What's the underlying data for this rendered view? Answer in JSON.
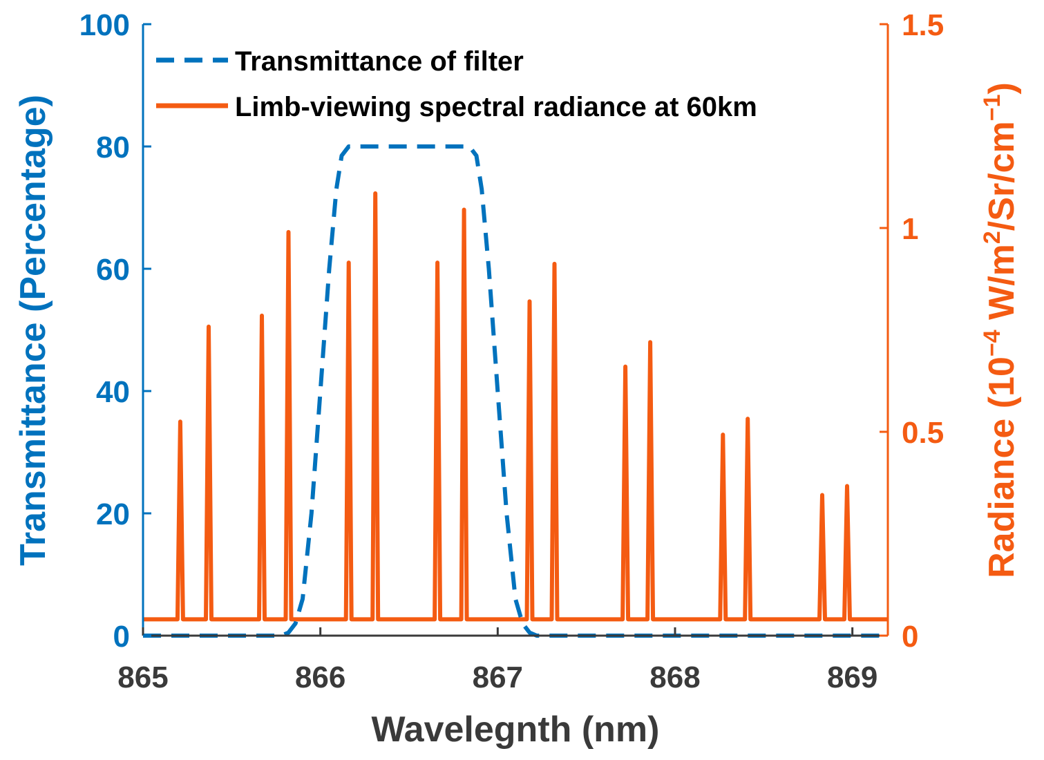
{
  "colors": {
    "left_axis": "#0072BD",
    "right_axis": "#F45B12",
    "x_axis": "#3a3a3a"
  },
  "chart_data": {
    "type": "line",
    "xlabel": "Wavelegnth (nm)",
    "ylabel_left": "Transmittance (Percentage)",
    "ylabel_right": {
      "prefix": "Radiance (10",
      "sup1": "−4",
      "mid": " W/m",
      "sup2": "2",
      "mid2": "/Sr/cm",
      "sup3": "−1",
      "suffix": ")"
    },
    "xlim": [
      865,
      869.2
    ],
    "ylim_left": [
      0,
      100
    ],
    "ylim_right": [
      0,
      1.5
    ],
    "x_ticks": [
      865,
      866,
      867,
      868,
      869
    ],
    "y_ticks_left": [
      0,
      20,
      40,
      60,
      80,
      100
    ],
    "y_ticks_right": [
      0,
      0.5,
      1,
      1.5
    ],
    "y_tick_labels_right": [
      "0",
      "0.5",
      "1",
      "1.5"
    ],
    "grid": false,
    "legend_position": "top-left",
    "series": [
      {
        "name": "Transmittance of filter",
        "axis": "left",
        "style": "dashed",
        "color": "#0072BD",
        "x": [
          865,
          865.78,
          865.82,
          865.86,
          865.9,
          865.95,
          866.0,
          866.05,
          866.09,
          866.12,
          866.16,
          866.5,
          866.84,
          866.88,
          866.91,
          866.95,
          867.0,
          867.05,
          867.1,
          867.14,
          867.18,
          867.22,
          867.3,
          869.2
        ],
        "y": [
          0,
          0,
          0.5,
          2,
          6,
          20,
          40,
          60,
          73,
          78.5,
          80,
          80,
          80,
          78.5,
          73,
          60,
          40,
          20,
          6,
          2,
          0.5,
          0,
          0,
          0
        ]
      },
      {
        "name": "Limb-viewing spectral radiance at 60km",
        "axis": "right",
        "style": "solid",
        "color": "#F45B12",
        "baseline": 0.04,
        "peaks": [
          {
            "x": 865.21,
            "y": 0.525
          },
          {
            "x": 865.37,
            "y": 0.758
          },
          {
            "x": 865.67,
            "y": 0.785
          },
          {
            "x": 865.82,
            "y": 0.99
          },
          {
            "x": 866.16,
            "y": 0.915
          },
          {
            "x": 866.31,
            "y": 1.085
          },
          {
            "x": 866.66,
            "y": 0.915
          },
          {
            "x": 866.81,
            "y": 1.045
          },
          {
            "x": 867.18,
            "y": 0.82
          },
          {
            "x": 867.32,
            "y": 0.912
          },
          {
            "x": 867.72,
            "y": 0.66
          },
          {
            "x": 867.86,
            "y": 0.72
          },
          {
            "x": 868.27,
            "y": 0.493
          },
          {
            "x": 868.41,
            "y": 0.532
          },
          {
            "x": 868.83,
            "y": 0.345
          },
          {
            "x": 868.97,
            "y": 0.367
          }
        ]
      }
    ]
  }
}
